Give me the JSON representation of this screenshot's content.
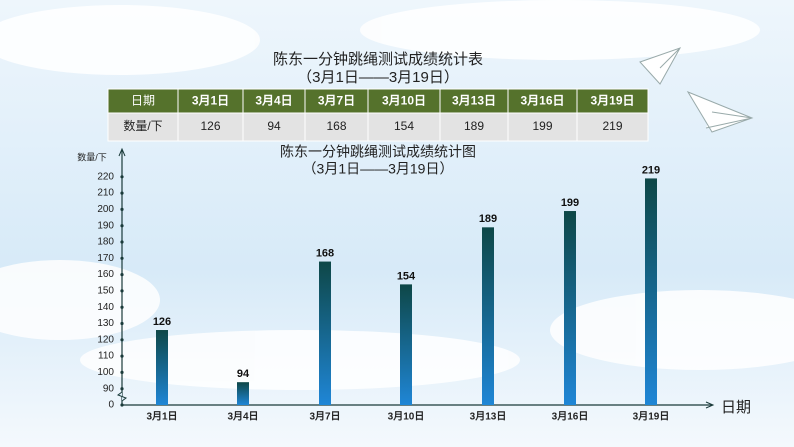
{
  "table": {
    "title": "陈东一分钟跳绳测试成绩统计表",
    "subtitle": "（3月1日——3月19日）",
    "header": [
      "日期",
      "3月1日",
      "3月4日",
      "3月7日",
      "3月10日",
      "3月13日",
      "3月16日",
      "3月19日"
    ],
    "rows": [
      [
        "数量/下",
        126,
        94,
        168,
        154,
        189,
        199,
        219
      ]
    ]
  },
  "chart_data": {
    "type": "bar",
    "title": "陈东一分钟跳绳测试成绩统计图",
    "subtitle": "（3月1日——3月19日）",
    "y_label": "数量/下",
    "x_label": "日期",
    "categories": [
      "3月1日",
      "3月4日",
      "3月7日",
      "3月10日",
      "3月13日",
      "3月16日",
      "3月19日"
    ],
    "values": [
      126,
      94,
      168,
      154,
      189,
      199,
      219
    ],
    "ylim": [
      80,
      230
    ],
    "yticks": [
      0,
      90,
      100,
      110,
      120,
      130,
      140,
      150,
      160,
      170,
      180,
      190,
      200,
      210,
      220
    ],
    "axis_break": true,
    "color_top": "#0e4747",
    "color_bottom": "#1f86d6"
  }
}
